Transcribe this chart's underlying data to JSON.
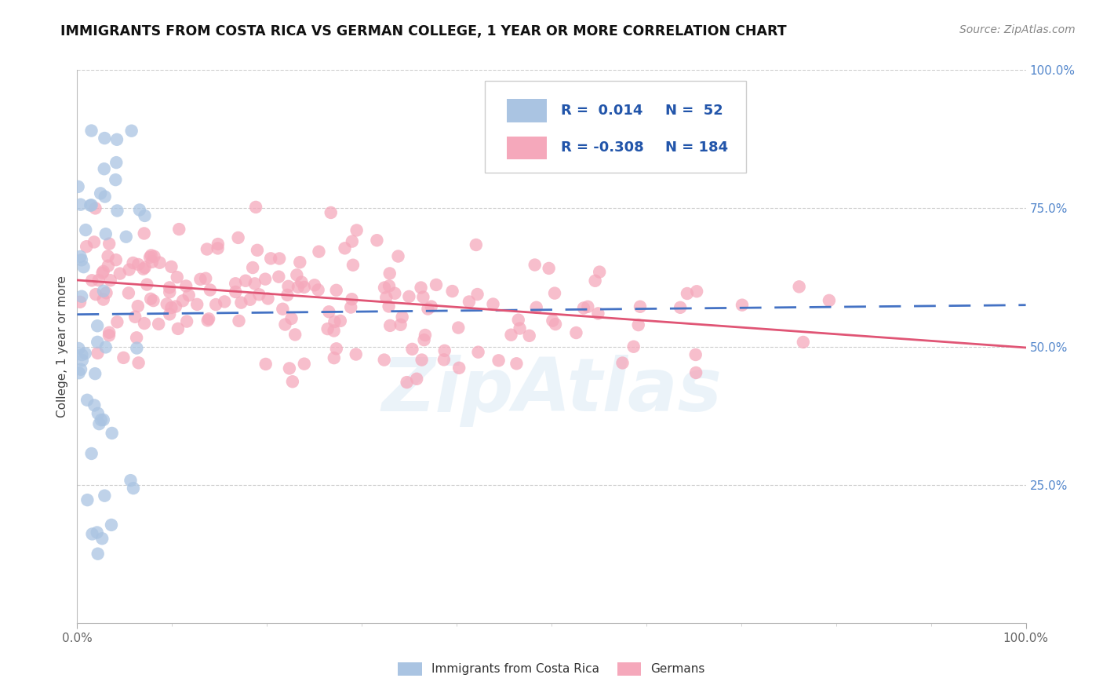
{
  "title": "IMMIGRANTS FROM COSTA RICA VS GERMAN COLLEGE, 1 YEAR OR MORE CORRELATION CHART",
  "source": "Source: ZipAtlas.com",
  "ylabel": "College, 1 year or more",
  "blue_color": "#aac4e2",
  "pink_color": "#f5a8bb",
  "blue_line_color": "#4472c4",
  "pink_line_color": "#e05575",
  "background_color": "#ffffff",
  "watermark": "ZipAtlas",
  "cr_seed": 7,
  "g_seed": 13,
  "legend_entries": [
    {
      "r": "R =  0.014",
      "n": "N =  52"
    },
    {
      "r": "R = -0.308",
      "n": "N = 184"
    }
  ],
  "blue_trend": [
    0.0,
    1.0,
    0.558,
    0.575
  ],
  "pink_trend": [
    0.0,
    1.0,
    0.62,
    0.498
  ],
  "xlim": [
    0.0,
    1.0
  ],
  "ylim": [
    0.0,
    1.0
  ],
  "right_yticks": [
    0.25,
    0.5,
    0.75,
    1.0
  ],
  "right_yticklabels": [
    "25.0%",
    "50.0%",
    "75.0%",
    "100.0%"
  ]
}
